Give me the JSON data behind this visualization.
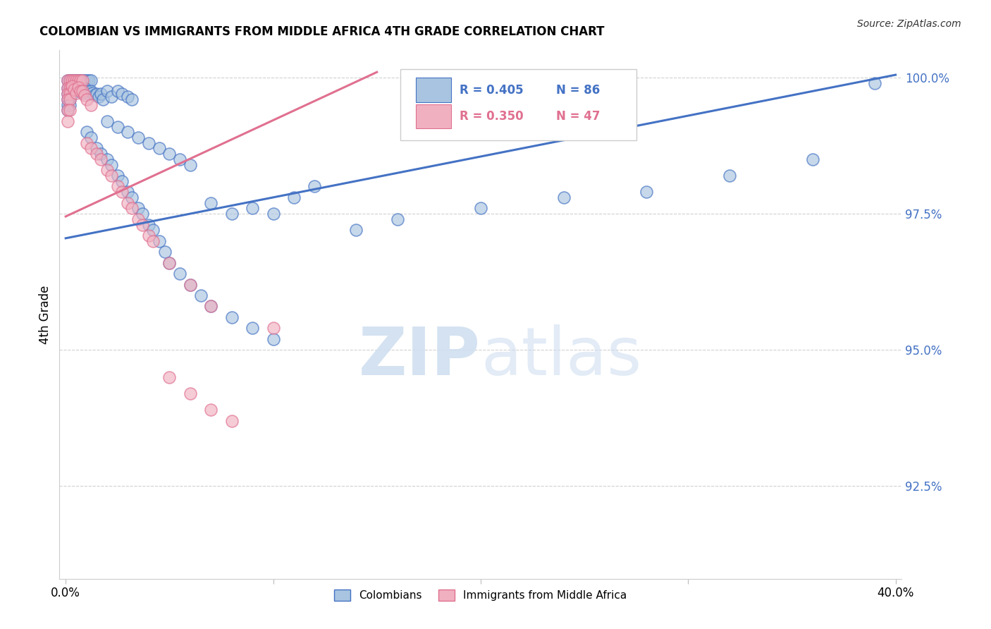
{
  "title": "COLOMBIAN VS IMMIGRANTS FROM MIDDLE AFRICA 4TH GRADE CORRELATION CHART",
  "source": "Source: ZipAtlas.com",
  "ylabel": "4th Grade",
  "right_yticks": [
    "100.0%",
    "97.5%",
    "95.0%",
    "92.5%"
  ],
  "right_ytick_values": [
    1.0,
    0.975,
    0.95,
    0.925
  ],
  "legend_blue_r": "R = 0.405",
  "legend_blue_n": "N = 86",
  "legend_pink_r": "R = 0.350",
  "legend_pink_n": "N = 47",
  "blue_color": "#A8C4E0",
  "pink_color": "#F0B0C0",
  "blue_line_color": "#4472C4",
  "pink_line_color": "#E07090",
  "legend_text_color": "#4472C4",
  "right_axis_color": "#4472C4",
  "bg_color": "#ffffff",
  "xlim": [
    -0.003,
    0.403
  ],
  "ylim": [
    0.908,
    1.005
  ],
  "grid_color": "#d0d0d0",
  "blue_line_x": [
    0.0,
    0.4
  ],
  "blue_line_y": [
    0.9705,
    1.0005
  ],
  "pink_line_x": [
    0.0,
    0.15
  ],
  "pink_line_y": [
    0.9745,
    1.001
  ],
  "scatter_blue": [
    [
      0.001,
      0.9995
    ],
    [
      0.002,
      0.9995
    ],
    [
      0.003,
      0.9995
    ],
    [
      0.004,
      0.9995
    ],
    [
      0.005,
      0.9995
    ],
    [
      0.006,
      0.9995
    ],
    [
      0.007,
      0.9995
    ],
    [
      0.008,
      0.9995
    ],
    [
      0.009,
      0.9995
    ],
    [
      0.01,
      0.9995
    ],
    [
      0.011,
      0.9995
    ],
    [
      0.012,
      0.9995
    ],
    [
      0.001,
      0.998
    ],
    [
      0.002,
      0.998
    ],
    [
      0.003,
      0.998
    ],
    [
      0.004,
      0.998
    ],
    [
      0.001,
      0.997
    ],
    [
      0.002,
      0.997
    ],
    [
      0.003,
      0.997
    ],
    [
      0.001,
      0.996
    ],
    [
      0.002,
      0.996
    ],
    [
      0.001,
      0.995
    ],
    [
      0.002,
      0.995
    ],
    [
      0.001,
      0.994
    ],
    [
      0.003,
      0.999
    ],
    [
      0.004,
      0.9985
    ],
    [
      0.005,
      0.9975
    ],
    [
      0.006,
      0.9985
    ],
    [
      0.007,
      0.9975
    ],
    [
      0.008,
      0.9972
    ],
    [
      0.009,
      0.998
    ],
    [
      0.01,
      0.9975
    ],
    [
      0.011,
      0.997
    ],
    [
      0.012,
      0.9975
    ],
    [
      0.013,
      0.9972
    ],
    [
      0.014,
      0.9968
    ],
    [
      0.015,
      0.997
    ],
    [
      0.016,
      0.9965
    ],
    [
      0.017,
      0.997
    ],
    [
      0.018,
      0.996
    ],
    [
      0.02,
      0.9975
    ],
    [
      0.022,
      0.9965
    ],
    [
      0.025,
      0.9975
    ],
    [
      0.027,
      0.997
    ],
    [
      0.03,
      0.9965
    ],
    [
      0.032,
      0.996
    ],
    [
      0.01,
      0.99
    ],
    [
      0.012,
      0.989
    ],
    [
      0.015,
      0.987
    ],
    [
      0.017,
      0.986
    ],
    [
      0.02,
      0.985
    ],
    [
      0.022,
      0.984
    ],
    [
      0.025,
      0.982
    ],
    [
      0.027,
      0.981
    ],
    [
      0.03,
      0.979
    ],
    [
      0.032,
      0.978
    ],
    [
      0.035,
      0.976
    ],
    [
      0.037,
      0.975
    ],
    [
      0.04,
      0.973
    ],
    [
      0.042,
      0.972
    ],
    [
      0.045,
      0.97
    ],
    [
      0.048,
      0.968
    ],
    [
      0.05,
      0.966
    ],
    [
      0.055,
      0.964
    ],
    [
      0.06,
      0.962
    ],
    [
      0.065,
      0.96
    ],
    [
      0.07,
      0.958
    ],
    [
      0.08,
      0.956
    ],
    [
      0.09,
      0.954
    ],
    [
      0.1,
      0.952
    ],
    [
      0.02,
      0.992
    ],
    [
      0.025,
      0.991
    ],
    [
      0.03,
      0.99
    ],
    [
      0.035,
      0.989
    ],
    [
      0.04,
      0.988
    ],
    [
      0.045,
      0.987
    ],
    [
      0.05,
      0.986
    ],
    [
      0.055,
      0.985
    ],
    [
      0.06,
      0.984
    ],
    [
      0.07,
      0.977
    ],
    [
      0.08,
      0.975
    ],
    [
      0.09,
      0.976
    ],
    [
      0.1,
      0.975
    ],
    [
      0.11,
      0.978
    ],
    [
      0.12,
      0.98
    ],
    [
      0.14,
      0.972
    ],
    [
      0.16,
      0.974
    ],
    [
      0.2,
      0.976
    ],
    [
      0.24,
      0.978
    ],
    [
      0.28,
      0.979
    ],
    [
      0.32,
      0.982
    ],
    [
      0.36,
      0.985
    ],
    [
      0.39,
      0.999
    ]
  ],
  "scatter_pink": [
    [
      0.001,
      0.9995
    ],
    [
      0.002,
      0.9995
    ],
    [
      0.003,
      0.9995
    ],
    [
      0.004,
      0.9995
    ],
    [
      0.005,
      0.9995
    ],
    [
      0.006,
      0.9995
    ],
    [
      0.007,
      0.9995
    ],
    [
      0.008,
      0.9995
    ],
    [
      0.001,
      0.998
    ],
    [
      0.002,
      0.998
    ],
    [
      0.003,
      0.998
    ],
    [
      0.001,
      0.997
    ],
    [
      0.002,
      0.997
    ],
    [
      0.001,
      0.996
    ],
    [
      0.002,
      0.996
    ],
    [
      0.001,
      0.994
    ],
    [
      0.002,
      0.994
    ],
    [
      0.001,
      0.992
    ],
    [
      0.003,
      0.9985
    ],
    [
      0.004,
      0.9978
    ],
    [
      0.005,
      0.9972
    ],
    [
      0.006,
      0.9982
    ],
    [
      0.007,
      0.9975
    ],
    [
      0.008,
      0.9975
    ],
    [
      0.009,
      0.9968
    ],
    [
      0.01,
      0.996
    ],
    [
      0.012,
      0.995
    ],
    [
      0.01,
      0.988
    ],
    [
      0.012,
      0.987
    ],
    [
      0.015,
      0.986
    ],
    [
      0.017,
      0.985
    ],
    [
      0.02,
      0.983
    ],
    [
      0.022,
      0.982
    ],
    [
      0.025,
      0.98
    ],
    [
      0.027,
      0.979
    ],
    [
      0.03,
      0.977
    ],
    [
      0.032,
      0.976
    ],
    [
      0.035,
      0.974
    ],
    [
      0.037,
      0.973
    ],
    [
      0.04,
      0.971
    ],
    [
      0.042,
      0.97
    ],
    [
      0.05,
      0.966
    ],
    [
      0.06,
      0.962
    ],
    [
      0.07,
      0.958
    ],
    [
      0.1,
      0.954
    ],
    [
      0.05,
      0.945
    ],
    [
      0.06,
      0.942
    ],
    [
      0.07,
      0.939
    ],
    [
      0.08,
      0.937
    ]
  ]
}
